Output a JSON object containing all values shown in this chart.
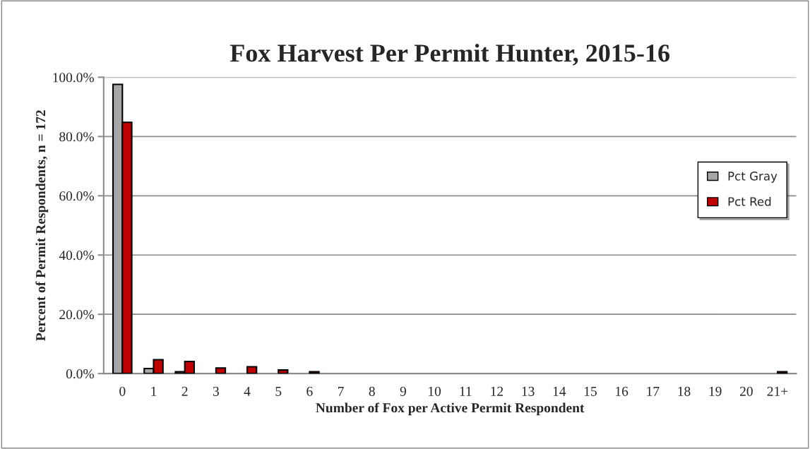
{
  "chart_data": {
    "type": "bar",
    "title": "Fox Harvest Per Permit Hunter, 2015-16",
    "xlabel": "Number of Fox per Active Permit Respondent",
    "ylabel": "Percent of Permit Respondents, n = 172",
    "categories": [
      "0",
      "1",
      "2",
      "3",
      "4",
      "5",
      "6",
      "7",
      "8",
      "9",
      "10",
      "11",
      "12",
      "13",
      "14",
      "15",
      "16",
      "17",
      "18",
      "19",
      "20",
      "21+"
    ],
    "series": [
      {
        "name": "Pct Gray",
        "color": "#a6a6a6",
        "values": [
          97.6,
          1.7,
          0.6,
          null,
          null,
          null,
          null,
          null,
          null,
          null,
          null,
          null,
          null,
          null,
          null,
          null,
          null,
          null,
          null,
          null,
          null,
          null
        ]
      },
      {
        "name": "Pct Red",
        "color": "#c00000",
        "values": [
          84.8,
          4.7,
          4.1,
          1.9,
          2.3,
          1.2,
          0.6,
          null,
          null,
          null,
          null,
          null,
          null,
          null,
          null,
          null,
          null,
          null,
          null,
          null,
          null,
          0.6
        ]
      }
    ],
    "ylim": [
      0,
      100
    ],
    "yticks": [
      {
        "value": 0,
        "label": "0.0%"
      },
      {
        "value": 20,
        "label": "20.0%"
      },
      {
        "value": 40,
        "label": "40.0%"
      },
      {
        "value": 60,
        "label": "60.0%"
      },
      {
        "value": 80,
        "label": "80.0%"
      },
      {
        "value": 100,
        "label": "100.0%"
      }
    ],
    "grid": "y",
    "legend": "right"
  }
}
